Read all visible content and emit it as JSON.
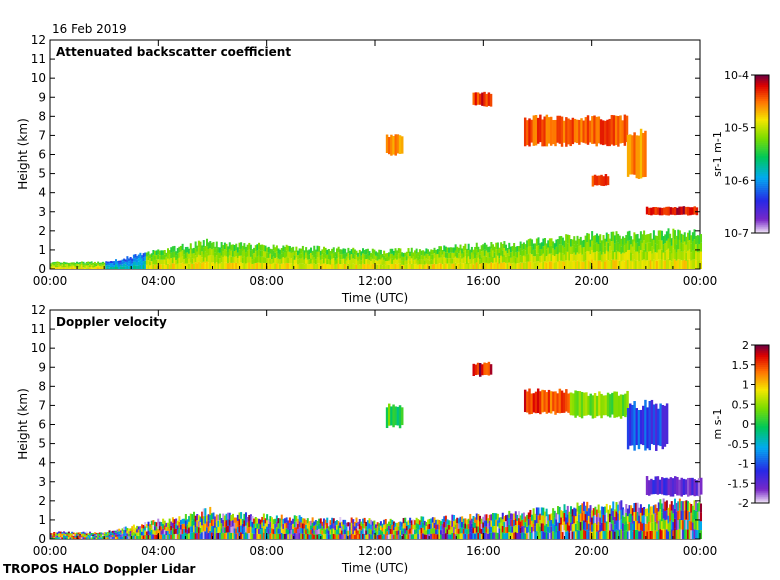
{
  "date_label": "16 Feb 2019",
  "footer_label": "TROPOS HALO Doppler Lidar",
  "chart_data": [
    {
      "type": "heatmap",
      "title": "Attenuated backscatter coefficient",
      "xlabel": "Time (UTC)",
      "ylabel": "Height (km)",
      "xlim": [
        0,
        24
      ],
      "ylim": [
        0,
        12
      ],
      "xticks": [
        0,
        4,
        8,
        12,
        16,
        20,
        24
      ],
      "xtick_labels": [
        "00:00",
        "04:00",
        "08:00",
        "12:00",
        "16:00",
        "20:00",
        "00:00"
      ],
      "yticks": [
        0,
        1,
        2,
        3,
        4,
        5,
        6,
        7,
        8,
        9,
        10,
        11,
        12
      ],
      "colorbar": {
        "scale": "log",
        "range": [
          1e-07,
          0.0001
        ],
        "tick_labels": [
          "10-7",
          "10-6",
          "10-5",
          "10-4"
        ],
        "unit_label": "sr-1 m-1"
      },
      "cloud_features": [
        {
          "t_start": 17.5,
          "t_end": 21.3,
          "h_bottom": 6.4,
          "h_top": 8.1,
          "level": 0.86
        },
        {
          "t_start": 21.3,
          "t_end": 22.0,
          "h_bottom": 4.7,
          "h_top": 7.4,
          "level": 0.82
        },
        {
          "t_start": 22.0,
          "t_end": 23.9,
          "h_bottom": 2.8,
          "h_top": 3.3,
          "level": 0.93
        },
        {
          "t_start": 15.6,
          "t_end": 16.3,
          "h_bottom": 8.5,
          "h_top": 9.3,
          "level": 0.9
        },
        {
          "t_start": 12.4,
          "t_end": 13.0,
          "h_bottom": 5.9,
          "h_top": 7.1,
          "level": 0.8
        },
        {
          "t_start": 20.0,
          "t_end": 20.6,
          "h_bottom": 4.3,
          "h_top": 5.0,
          "level": 0.88
        }
      ]
    },
    {
      "type": "heatmap",
      "title": "Doppler velocity",
      "xlabel": "Time (UTC)",
      "ylabel": "Height (km)",
      "xlim": [
        0,
        24
      ],
      "ylim": [
        0,
        12
      ],
      "xticks": [
        0,
        4,
        8,
        12,
        16,
        20,
        24
      ],
      "xtick_labels": [
        "00:00",
        "04:00",
        "08:00",
        "12:00",
        "16:00",
        "20:00",
        "00:00"
      ],
      "yticks": [
        0,
        1,
        2,
        3,
        4,
        5,
        6,
        7,
        8,
        9,
        10,
        11,
        12
      ],
      "colorbar": {
        "scale": "linear",
        "range": [
          -2,
          2
        ],
        "ticks": [
          2,
          1.5,
          1,
          0.5,
          0,
          -0.5,
          -1,
          -1.5,
          -2
        ],
        "tick_labels": [
          "2",
          "1.5",
          "1",
          "0.5",
          "0",
          "-0.5",
          "-1",
          "-1.5",
          "-2"
        ],
        "unit_label": "m s-1"
      },
      "cloud_features": [
        {
          "t_start": 17.5,
          "t_end": 19.2,
          "h_bottom": 6.5,
          "h_top": 7.9,
          "velocity": 1.6
        },
        {
          "t_start": 19.2,
          "t_end": 21.3,
          "h_bottom": 6.3,
          "h_top": 7.8,
          "velocity": 0.5
        },
        {
          "t_start": 21.3,
          "t_end": 22.8,
          "h_bottom": 4.6,
          "h_top": 7.3,
          "velocity": -1.0
        },
        {
          "t_start": 22.0,
          "t_end": 24.0,
          "h_bottom": 2.2,
          "h_top": 3.3,
          "velocity": -1.4
        },
        {
          "t_start": 15.6,
          "t_end": 16.3,
          "h_bottom": 8.5,
          "h_top": 9.3,
          "velocity": 1.8
        },
        {
          "t_start": 12.4,
          "t_end": 13.0,
          "h_bottom": 5.8,
          "h_top": 7.1,
          "velocity": 0.2
        }
      ]
    }
  ]
}
